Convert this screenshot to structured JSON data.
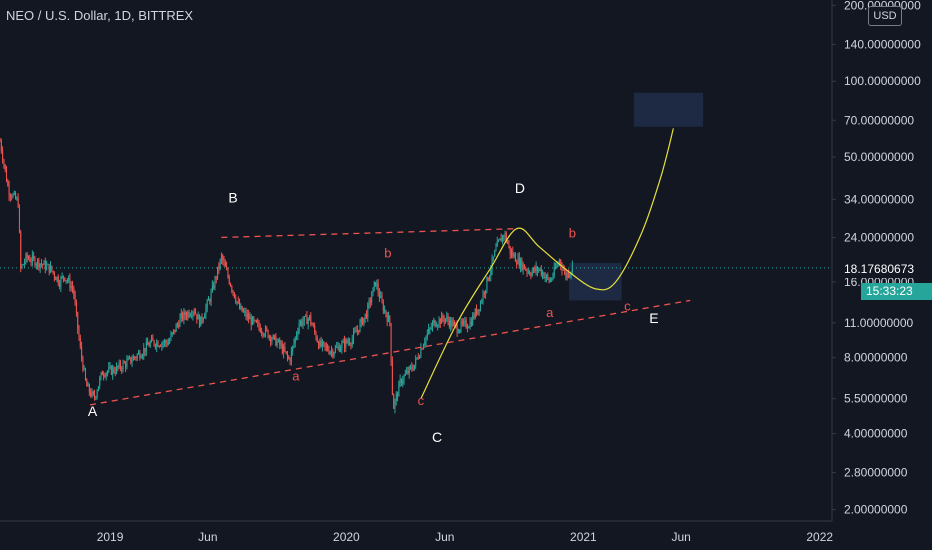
{
  "header": {
    "title": "NEO / U.S. Dollar, 1D, BITTREX",
    "currency_button": "USD"
  },
  "price_label": "18.17680673",
  "countdown": "15:33:23",
  "colors": {
    "background": "#131722",
    "up": "#26a69a",
    "down": "#ef5350",
    "wave": "#ef5350",
    "white_label": "#ffffff",
    "projection": "#e6e03a",
    "box": "#1e2a44",
    "axis_text": "#d1d4dc"
  },
  "chart_data": {
    "type": "candlestick",
    "title": "NEO / U.S. Dollar, 1D, BITTREX",
    "x_axis": {
      "ticks": [
        "2019",
        "Jun",
        "2020",
        "Jun",
        "2021",
        "Jun",
        "2022"
      ]
    },
    "y_axis": {
      "scale": "log",
      "range": [
        1.8,
        210
      ],
      "ticks": [
        "200.00000000",
        "140.00000000",
        "100.00000000",
        "70.00000000",
        "50.00000000",
        "34.00000000",
        "24.00000000",
        "18.17680673",
        "16.00000000",
        "11.00000000",
        "8.00000000",
        "5.50000000",
        "4.00000000",
        "2.80000000",
        "2.00000000"
      ]
    },
    "last_price": 18.17680673,
    "grid": false,
    "price_path": [
      [
        "2018-07-15",
        58
      ],
      [
        "2018-07-28",
        37
      ],
      [
        "2018-08-12",
        33
      ],
      [
        "2018-08-16",
        18
      ],
      [
        "2018-08-25",
        20
      ],
      [
        "2018-09-15",
        19
      ],
      [
        "2018-10-01",
        18
      ],
      [
        "2018-10-15",
        16
      ],
      [
        "2018-10-22",
        17
      ],
      [
        "2018-11-05",
        15
      ],
      [
        "2018-11-15",
        9
      ],
      [
        "2018-11-25",
        6.2
      ],
      [
        "2018-12-07",
        5.5
      ],
      [
        "2018-12-20",
        7
      ],
      [
        "2019-01-10",
        7.2
      ],
      [
        "2019-02-01",
        7.8
      ],
      [
        "2019-02-20",
        8.5
      ],
      [
        "2019-03-05",
        9.2
      ],
      [
        "2019-04-01",
        9.2
      ],
      [
        "2019-04-20",
        11.5
      ],
      [
        "2019-05-10",
        12.5
      ],
      [
        "2019-05-20",
        11
      ],
      [
        "2019-06-05",
        14
      ],
      [
        "2019-06-22",
        20
      ],
      [
        "2019-07-05",
        16
      ],
      [
        "2019-07-20",
        12.5
      ],
      [
        "2019-08-10",
        11
      ],
      [
        "2019-09-01",
        10
      ],
      [
        "2019-09-20",
        9
      ],
      [
        "2019-10-05",
        7.8
      ],
      [
        "2019-10-20",
        11
      ],
      [
        "2019-11-05",
        11.5
      ],
      [
        "2019-11-20",
        9
      ],
      [
        "2019-12-10",
        8.5
      ],
      [
        "2020-01-10",
        9.5
      ],
      [
        "2020-02-01",
        12
      ],
      [
        "2020-02-15",
        16
      ],
      [
        "2020-02-25",
        13
      ],
      [
        "2020-03-08",
        11
      ],
      [
        "2020-03-13",
        5
      ],
      [
        "2020-03-25",
        6.5
      ],
      [
        "2020-04-15",
        7.5
      ],
      [
        "2020-05-01",
        9.5
      ],
      [
        "2020-05-15",
        11
      ],
      [
        "2020-06-01",
        11.5
      ],
      [
        "2020-06-20",
        10.5
      ],
      [
        "2020-07-10",
        11
      ],
      [
        "2020-07-25",
        13
      ],
      [
        "2020-08-05",
        16
      ],
      [
        "2020-08-20",
        22
      ],
      [
        "2020-09-01",
        25
      ],
      [
        "2020-09-10",
        21
      ],
      [
        "2020-09-25",
        19
      ],
      [
        "2020-10-10",
        17.5
      ],
      [
        "2020-10-25",
        18
      ],
      [
        "2020-11-10",
        16
      ],
      [
        "2020-11-25",
        19.5
      ],
      [
        "2020-12-05",
        17
      ],
      [
        "2020-12-15",
        18.18
      ]
    ],
    "annotations": [
      {
        "text": "A",
        "color": "white",
        "x": "2018-12-05",
        "y": 4.7
      },
      {
        "text": "B",
        "color": "white",
        "x": "2019-07-10",
        "y": 33
      },
      {
        "text": "C",
        "color": "white",
        "x": "2020-05-20",
        "y": 3.7
      },
      {
        "text": "D",
        "color": "white",
        "x": "2020-09-25",
        "y": 36
      },
      {
        "text": "E",
        "color": "white",
        "x": "2021-04-20",
        "y": 11
      },
      {
        "text": "a",
        "color": "red",
        "x": "2019-10-15",
        "y": 6.5
      },
      {
        "text": "b",
        "color": "red",
        "x": "2020-03-05",
        "y": 20
      },
      {
        "text": "c",
        "color": "red",
        "x": "2020-04-25",
        "y": 5.2
      },
      {
        "text": "a",
        "color": "red",
        "x": "2020-11-10",
        "y": 11.6
      },
      {
        "text": "b",
        "color": "red",
        "x": "2020-12-15",
        "y": 24
      },
      {
        "text": "c",
        "color": "red",
        "x": "2021-03-10",
        "y": 12.3
      }
    ],
    "trendlines": [
      {
        "from": [
          "2018-12-01",
          5.2
        ],
        "to": [
          "2021-06-15",
          13.5
        ],
        "style": "dashed",
        "color": "red"
      },
      {
        "from": [
          "2019-06-22",
          24
        ],
        "to": [
          "2020-09-20",
          26
        ],
        "style": "dashed",
        "color": "red"
      }
    ],
    "projection_curve": [
      [
        "2020-04-25",
        5.5
      ],
      [
        "2020-06-20",
        11
      ],
      [
        "2020-08-10",
        18
      ],
      [
        "2020-09-20",
        26
      ],
      [
        "2020-10-25",
        22
      ],
      [
        "2020-12-10",
        17.5
      ],
      [
        "2021-01-20",
        15
      ],
      [
        "2021-02-20",
        16
      ],
      [
        "2021-04-01",
        25
      ],
      [
        "2021-05-01",
        42
      ],
      [
        "2021-05-20",
        65
      ]
    ],
    "zones": [
      {
        "from": [
          "2020-12-10",
          13.5
        ],
        "to": [
          "2021-03-01",
          19
        ]
      },
      {
        "from": [
          "2021-03-20",
          66
        ],
        "to": [
          "2021-07-05",
          90
        ]
      }
    ]
  }
}
